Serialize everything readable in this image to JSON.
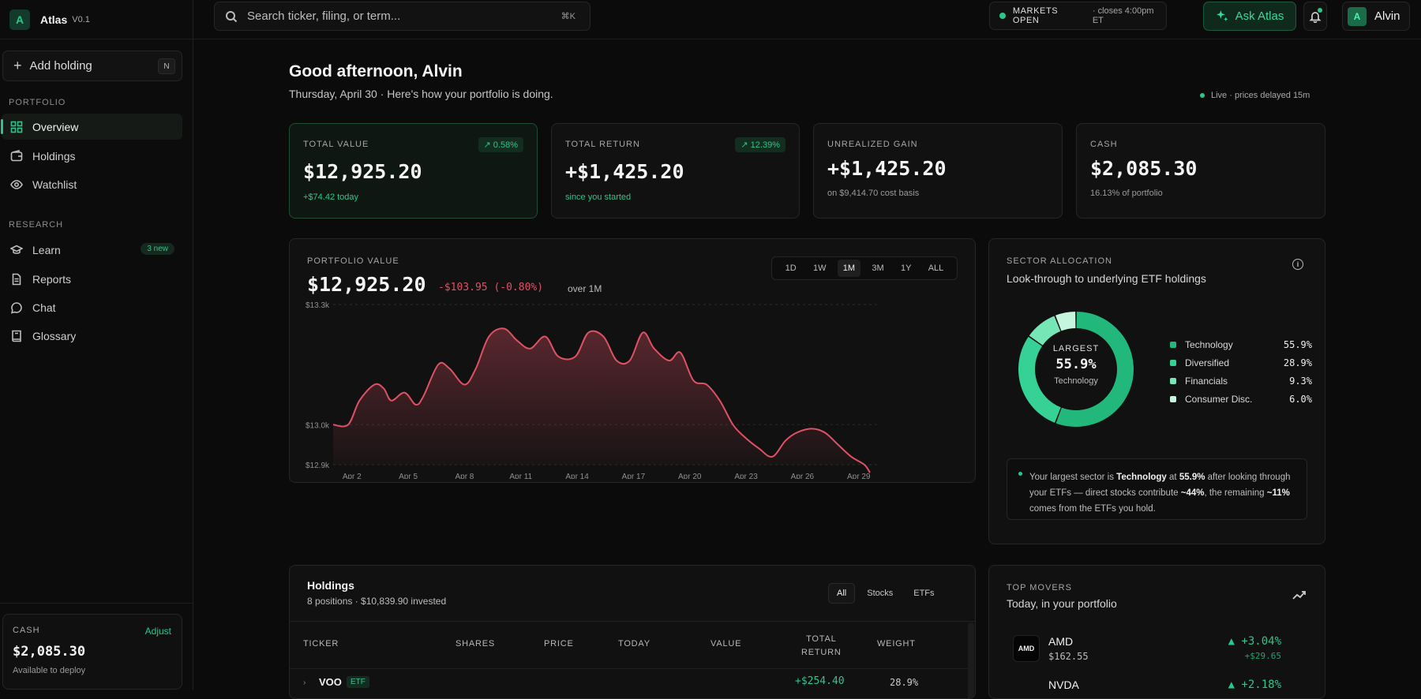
{
  "app": {
    "logo_letter": "A",
    "name": "Atlas",
    "version": "V0.1"
  },
  "sidebar": {
    "add_holding": {
      "label": "Add holding",
      "shortcut": "N"
    },
    "portfolio_title": "PORTFOLIO",
    "portfolio_items": [
      {
        "label": "Overview",
        "icon": "grid-icon",
        "active": true
      },
      {
        "label": "Holdings",
        "icon": "wallet-icon"
      },
      {
        "label": "Watchlist",
        "icon": "eye-icon"
      }
    ],
    "research_title": "RESEARCH",
    "research_items": [
      {
        "label": "Learn",
        "icon": "graduation-cap-icon",
        "badge": "3 new"
      },
      {
        "label": "Reports",
        "icon": "document-icon"
      },
      {
        "label": "Chat",
        "icon": "chat-icon"
      },
      {
        "label": "Glossary",
        "icon": "book-icon"
      }
    ],
    "cash": {
      "label": "CASH",
      "adjust": "Adjust",
      "value": "$2,085.30",
      "sub": "Available to deploy"
    }
  },
  "topbar": {
    "search_placeholder": "Search ticker, filing, or term...",
    "search_shortcut": "⌘K",
    "market_status": "MARKETS OPEN",
    "market_close": "· closes 4:00pm ET",
    "ask_label": "Ask Atlas",
    "user_initial": "A",
    "user_name": "Alvin"
  },
  "greeting": {
    "title": "Good afternoon, Alvin",
    "subtitle": "Thursday, April 30 · Here's how your portfolio is doing.",
    "live": "Live · prices delayed 15m"
  },
  "stats": [
    {
      "label": "TOTAL VALUE",
      "value": "$12,925.20",
      "sub": "+$74.42 today",
      "badge": "↗ 0.58%"
    },
    {
      "label": "TOTAL RETURN",
      "value": "+$1,425.20",
      "sub": "since you started",
      "badge": "↗ 12.39%"
    },
    {
      "label": "UNREALIZED GAIN",
      "value": "+$1,425.20",
      "sub": "on $9,414.70 cost basis"
    },
    {
      "label": "CASH",
      "value": "$2,085.30",
      "sub": "16.13% of portfolio"
    }
  ],
  "portfolio_value": {
    "label": "PORTFOLIO VALUE",
    "value": "$12,925.20",
    "change": "-$103.95 (-0.80%)",
    "period": "over 1M",
    "ranges": [
      "1D",
      "1W",
      "1M",
      "3M",
      "1Y",
      "ALL"
    ],
    "active_range": "1M"
  },
  "chart_data": {
    "type": "area",
    "title": "",
    "ylabel": "",
    "xlabel": "",
    "ylim": [
      12.9,
      13.3
    ],
    "y_ticks": [
      "$13.3k",
      "$13.0k",
      "$12.9k"
    ],
    "x_ticks": [
      "Apr 2",
      "Apr 5",
      "Apr 8",
      "Apr 11",
      "Apr 14",
      "Apr 17",
      "Apr 20",
      "Apr 23",
      "Apr 26",
      "Apr 29"
    ],
    "x": [
      1,
      1.8,
      2.4,
      3.2,
      3.7,
      4.1,
      4.8,
      5.4,
      5.8,
      6.6,
      7.2,
      8.0,
      8.6,
      9.3,
      10.1,
      10.8,
      11.5,
      12.3,
      13.0,
      13.9,
      14.6,
      15.4,
      16.1,
      16.8,
      17.5,
      18.1,
      18.9,
      19.5,
      20.2,
      20.9,
      21.6,
      22.3,
      22.9,
      23.7,
      24.4,
      25.1,
      25.7,
      26.5,
      27.2,
      27.9,
      28.6,
      29.3,
      29.6
    ],
    "values": [
      13.0,
      13.0,
      13.06,
      13.1,
      13.09,
      13.06,
      13.08,
      13.05,
      13.07,
      13.15,
      13.14,
      13.1,
      13.14,
      13.22,
      13.24,
      13.21,
      13.19,
      13.22,
      13.17,
      13.17,
      13.23,
      13.22,
      13.16,
      13.16,
      13.23,
      13.19,
      13.16,
      13.18,
      13.11,
      13.1,
      13.06,
      13.0,
      12.97,
      12.94,
      12.92,
      12.96,
      12.98,
      12.99,
      12.98,
      12.95,
      12.92,
      12.9,
      12.88
    ],
    "line_color": "#e05166"
  },
  "sector_allocation": {
    "label": "SECTOR ALLOCATION",
    "subtitle": "Look-through to underlying ETF holdings",
    "center_label": "LARGEST",
    "center_value": "55.9%",
    "center_sector": "Technology",
    "chart_data": {
      "type": "pie",
      "categories": [
        "Technology",
        "Diversified",
        "Financials",
        "Consumer Disc."
      ],
      "values": [
        55.9,
        28.9,
        9.3,
        6.0
      ],
      "colors": [
        "#22b87c",
        "#36d194",
        "#76e6b6",
        "#c6f5de"
      ]
    },
    "legend": [
      {
        "name": "Technology",
        "pct": "55.9%",
        "color": "#22b87c"
      },
      {
        "name": "Diversified",
        "pct": "28.9%",
        "color": "#36d194"
      },
      {
        "name": "Financials",
        "pct": "9.3%",
        "color": "#76e6b6"
      },
      {
        "name": "Consumer Disc.",
        "pct": "6.0%",
        "color": "#c6f5de"
      }
    ],
    "note_parts": {
      "p1": "Your largest sector is ",
      "b1": "Technology",
      "p2": " at ",
      "b2": "55.9%",
      "p3": " after looking through your ETFs — direct stocks contribute ",
      "b3": "~44%",
      "p4": ", the remaining ",
      "b4": "~11%",
      "p5": " comes from the ETFs you hold."
    }
  },
  "holdings": {
    "title": "Holdings",
    "sub": "8 positions · $10,839.90 invested",
    "filters": [
      "All",
      "Stocks",
      "ETFs"
    ],
    "active_filter": "All",
    "columns": {
      "ticker": "TICKER",
      "shares": "SHARES",
      "price": "PRICE",
      "today": "TODAY",
      "value": "VALUE",
      "total_return_1": "TOTAL",
      "total_return_2": "RETURN",
      "weight": "WEIGHT"
    },
    "first_row": {
      "ticker": "VOO",
      "tag": "ETF",
      "total_return": "+$254.40",
      "weight": "28.9%"
    }
  },
  "top_movers": {
    "label": "TOP MOVERS",
    "sub": "Today, in your portfolio",
    "items": [
      {
        "ticker": "AMD",
        "price": "$162.55",
        "pct": "▲ +3.04%",
        "abs": "+$29.65"
      },
      {
        "ticker": "NVDA",
        "pct": "▲ +2.18%"
      }
    ]
  }
}
